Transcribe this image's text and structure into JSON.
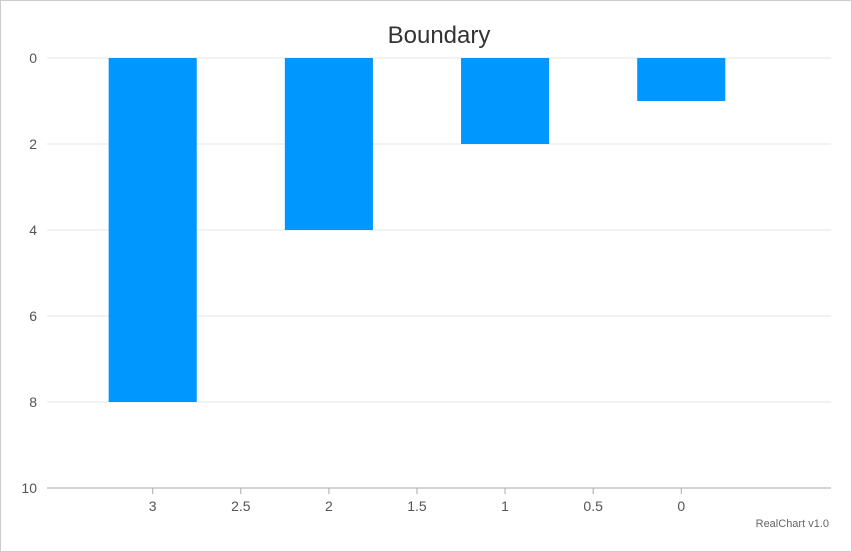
{
  "chart_data": {
    "type": "bar",
    "title": "Boundary",
    "xlabel": "",
    "ylabel": "",
    "x_axis": {
      "reversed": true,
      "range": [
        -0.85,
        3.6
      ],
      "ticks": [
        3,
        2.5,
        2,
        1.5,
        1,
        0.5,
        0
      ],
      "tick_labels": [
        "3",
        "2.5",
        "2",
        "1.5",
        "1",
        "0.5",
        "0"
      ]
    },
    "y_axis": {
      "reversed": true,
      "range": [
        0,
        10
      ],
      "ticks": [
        0,
        2,
        4,
        6,
        8,
        10
      ],
      "tick_labels": [
        "0",
        "2",
        "4",
        "6",
        "8",
        "10"
      ],
      "grid": true
    },
    "bar_width_units": 0.5,
    "points": [
      {
        "x": 3,
        "y": 8
      },
      {
        "x": 2,
        "y": 4
      },
      {
        "x": 1,
        "y": 2
      },
      {
        "x": 0,
        "y": 1
      }
    ],
    "colors": {
      "bar": "#0098ff",
      "grid": "#e4e4e4",
      "axis": "#aaaaaa"
    },
    "credit": "RealChart v1.0"
  }
}
